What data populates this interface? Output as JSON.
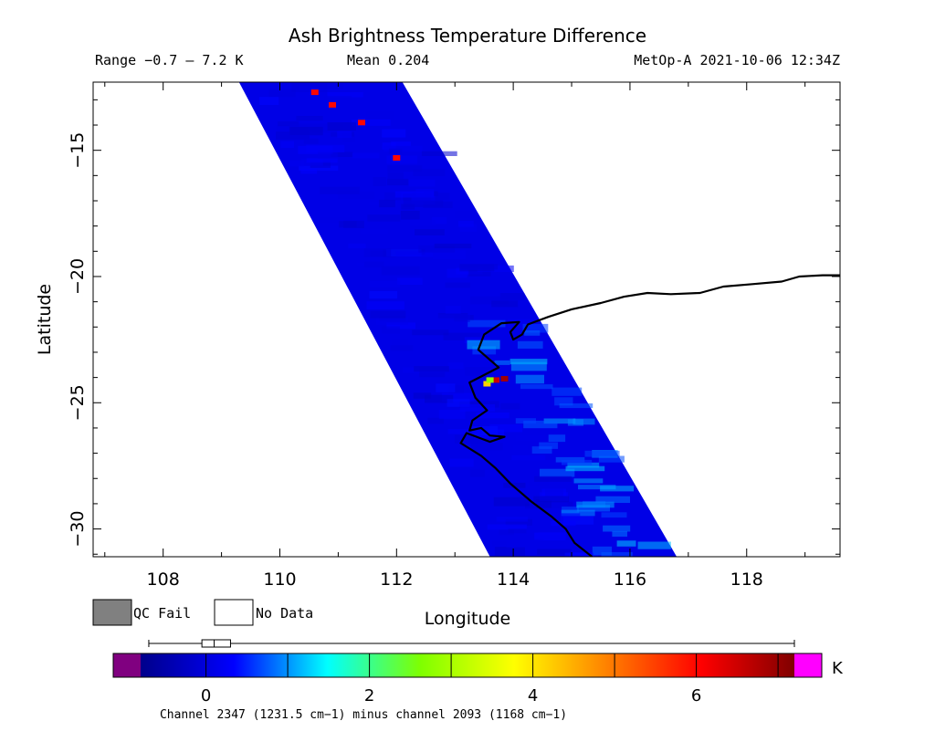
{
  "header": {
    "title": "Ash Brightness Temperature Difference",
    "range": "Range −0.7 – 7.2 K",
    "mean": "Mean 0.204",
    "satellite": "MetOp-A 2021-10-06 12:34Z"
  },
  "legend": {
    "qc_fail": "QC Fail",
    "no_data": "No Data",
    "qc_fail_color": "#808080",
    "no_data_color": "#ffffff"
  },
  "colorbar": {
    "unit": "K",
    "ticks": [
      "0",
      "2",
      "4",
      "6"
    ],
    "tick_values": [
      0,
      2,
      4,
      6
    ],
    "min": -0.8,
    "max": 7.2,
    "under_color": "#800080",
    "over_color": "#ff00ff",
    "stops": [
      "#00008b",
      "#0000ff",
      "#00ffff",
      "#7fff00",
      "#ffff00",
      "#ff8000",
      "#ff0000",
      "#800000"
    ],
    "boxplot": {
      "min": -0.7,
      "q1": -0.05,
      "median": 0.1,
      "q3": 0.3,
      "max": 7.2
    },
    "caption": "Channel 2347 (1231.5 cm−1) minus channel 2093 (1168 cm−1)"
  },
  "chart_data": {
    "type": "heatmap",
    "title": "Ash Brightness Temperature Difference",
    "xlabel": "Longitude",
    "ylabel": "Latitude",
    "xlim": [
      106.8,
      119.6
    ],
    "ylim": [
      -31.1,
      -12.3
    ],
    "x_ticks": [
      108,
      110,
      112,
      114,
      116,
      118
    ],
    "x_tick_labels": [
      "108",
      "110",
      "112",
      "114",
      "116",
      "118"
    ],
    "y_ticks": [
      -15,
      -20,
      -25,
      -30
    ],
    "y_tick_labels": [
      "−15",
      "−20",
      "−25",
      "−30"
    ],
    "swath_corners": [
      [
        109.3,
        -12.3
      ],
      [
        112.1,
        -12.3
      ],
      [
        116.8,
        -31.1
      ],
      [
        113.6,
        -31.1
      ]
    ],
    "swath_background_value": 0.1,
    "hotspots": [
      {
        "lon": 113.7,
        "lat": -24.1,
        "value": 6.5
      },
      {
        "lon": 113.85,
        "lat": -24.05,
        "value": 6.9
      },
      {
        "lon": 113.55,
        "lat": -24.25,
        "value": 4.2
      },
      {
        "lon": 113.6,
        "lat": -24.1,
        "value": 2.8
      },
      {
        "lon": 110.6,
        "lat": -12.7,
        "value": 6.0
      },
      {
        "lon": 110.9,
        "lat": -13.2,
        "value": 6.0
      },
      {
        "lon": 111.4,
        "lat": -13.9,
        "value": 6.0
      },
      {
        "lon": 112.0,
        "lat": -15.3,
        "value": 6.0
      }
    ],
    "coastline": [
      [
        119.6,
        -19.95
      ],
      [
        119.3,
        -19.95
      ],
      [
        118.9,
        -20.0
      ],
      [
        118.6,
        -20.2
      ],
      [
        118.1,
        -20.3
      ],
      [
        117.6,
        -20.4
      ],
      [
        117.2,
        -20.65
      ],
      [
        116.7,
        -20.7
      ],
      [
        116.3,
        -20.65
      ],
      [
        115.9,
        -20.8
      ],
      [
        115.5,
        -21.05
      ],
      [
        115.0,
        -21.3
      ],
      [
        114.6,
        -21.6
      ],
      [
        114.25,
        -21.9
      ],
      [
        114.15,
        -22.3
      ],
      [
        114.0,
        -22.5
      ],
      [
        113.95,
        -22.2
      ],
      [
        114.1,
        -21.8
      ],
      [
        113.8,
        -21.85
      ],
      [
        113.5,
        -22.3
      ],
      [
        113.4,
        -22.9
      ],
      [
        113.6,
        -23.3
      ],
      [
        113.75,
        -23.6
      ],
      [
        113.5,
        -23.9
      ],
      [
        113.25,
        -24.2
      ],
      [
        113.35,
        -24.8
      ],
      [
        113.55,
        -25.3
      ],
      [
        113.3,
        -25.7
      ],
      [
        113.25,
        -26.1
      ],
      [
        113.45,
        -26.0
      ],
      [
        113.6,
        -26.3
      ],
      [
        113.85,
        -26.35
      ],
      [
        113.6,
        -26.55
      ],
      [
        113.2,
        -26.2
      ],
      [
        113.1,
        -26.6
      ],
      [
        113.45,
        -27.1
      ],
      [
        113.7,
        -27.6
      ],
      [
        113.95,
        -28.2
      ],
      [
        114.3,
        -28.9
      ],
      [
        114.65,
        -29.5
      ],
      [
        114.9,
        -30.0
      ],
      [
        115.05,
        -30.55
      ],
      [
        115.35,
        -31.1
      ]
    ]
  }
}
